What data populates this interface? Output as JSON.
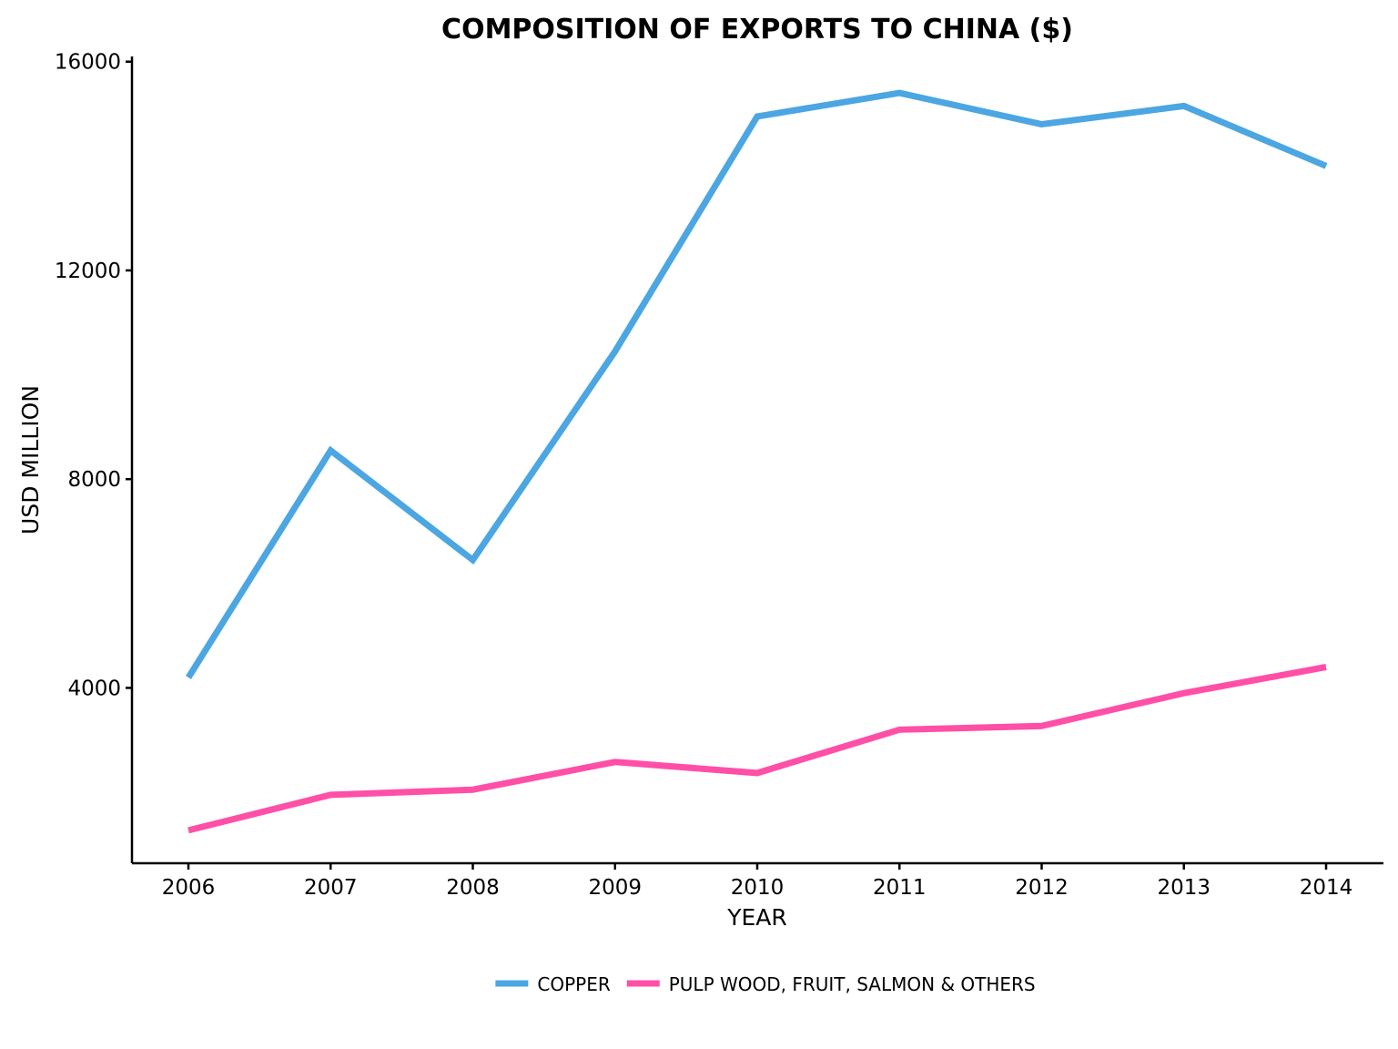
{
  "chart_data": {
    "type": "line",
    "title": "COMPOSITION OF EXPORTS TO CHINA ($)",
    "xlabel": "YEAR",
    "ylabel": "USD MILLION",
    "x": [
      "2006",
      "2007",
      "2008",
      "2009",
      "2010",
      "2011",
      "2012",
      "2013",
      "2014"
    ],
    "y_ticks": [
      "4000",
      "8000",
      "12000",
      "16000"
    ],
    "ylim": [
      640,
      16100
    ],
    "grid": false,
    "legend_position": "bottom",
    "series": [
      {
        "name": "COPPER",
        "color": "#4ba6e2",
        "values": [
          4200,
          8550,
          6450,
          10450,
          14950,
          15400,
          14800,
          15150,
          14000
        ]
      },
      {
        "name": "PULP WOOD, FRUIT, SALMON & OTHERS",
        "color": "#ff4fa7",
        "values": [
          1270,
          1950,
          2050,
          2580,
          2370,
          3200,
          3270,
          3900,
          4400
        ]
      }
    ]
  }
}
